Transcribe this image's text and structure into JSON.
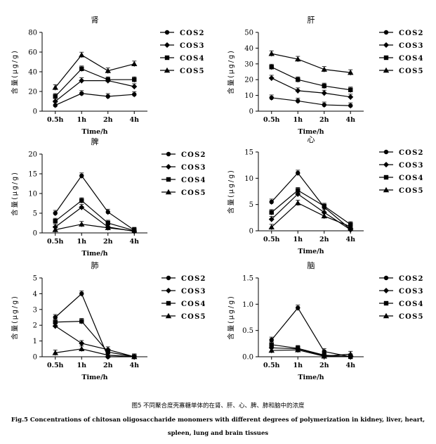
{
  "x_categories": [
    "0.5h",
    "1h",
    "2h",
    "4h"
  ],
  "caption": {
    "cn": "图5 不同聚合度壳寡糖单体的在肾、肝、心、脾、肺和脑中的浓度",
    "en_line1": "Fig.5 Concentrations of chitosan oligosaccharide monomers with different degrees of polymerization in kidney, liver, heart,",
    "en_line2": "spleen, lung and brain tissues"
  },
  "chart_data": [
    {
      "type": "line",
      "title": "肾",
      "xlabel": "Time/h",
      "ylabel": "含量(μg/g)",
      "categories": [
        "0.5h",
        "1h",
        "2h",
        "4h"
      ],
      "ylim": [
        0,
        80
      ],
      "yticks": [
        0,
        20,
        40,
        60,
        80
      ],
      "legend": "right",
      "series": [
        {
          "name": "COS2",
          "marker": "circle",
          "values": [
            6,
            18,
            15,
            17
          ]
        },
        {
          "name": "COS3",
          "marker": "diamond",
          "values": [
            10,
            31,
            31,
            25
          ]
        },
        {
          "name": "COS4",
          "marker": "square",
          "values": [
            15,
            43,
            32,
            32
          ]
        },
        {
          "name": "COS5",
          "marker": "triangle",
          "values": [
            24,
            57,
            41,
            48
          ]
        }
      ]
    },
    {
      "type": "line",
      "title": "肝",
      "xlabel": "Time/h",
      "ylabel": "含量(μg/g)",
      "categories": [
        "0.5h",
        "1h",
        "2h",
        "4h"
      ],
      "ylim": [
        0,
        50
      ],
      "yticks": [
        0,
        10,
        20,
        30,
        40,
        50
      ],
      "legend": "right",
      "series": [
        {
          "name": "COS2",
          "marker": "circle",
          "values": [
            8.5,
            6.5,
            4,
            3.5
          ]
        },
        {
          "name": "COS3",
          "marker": "diamond",
          "values": [
            21,
            13,
            11.5,
            9
          ]
        },
        {
          "name": "COS4",
          "marker": "square",
          "values": [
            28,
            20,
            16,
            13.5
          ]
        },
        {
          "name": "COS5",
          "marker": "triangle",
          "values": [
            36.5,
            33,
            26.5,
            24.5
          ]
        }
      ]
    },
    {
      "type": "line",
      "title": "脾",
      "xlabel": "Time/h",
      "ylabel": "含量(μg/g)",
      "categories": [
        "0.5h",
        "1h",
        "2h",
        "4h"
      ],
      "ylim": [
        0,
        20
      ],
      "yticks": [
        0,
        5,
        10,
        15,
        20
      ],
      "legend": "right",
      "series": [
        {
          "name": "COS2",
          "marker": "circle",
          "values": [
            5,
            14.5,
            5.3,
            0.7
          ]
        },
        {
          "name": "COS3",
          "marker": "diamond",
          "values": [
            1.5,
            6.5,
            1.5,
            0.4
          ]
        },
        {
          "name": "COS4",
          "marker": "square",
          "values": [
            3,
            8.2,
            2.5,
            0.6
          ]
        },
        {
          "name": "COS5",
          "marker": "triangle",
          "values": [
            0.8,
            2.2,
            1.3,
            0.5
          ]
        }
      ]
    },
    {
      "type": "line",
      "title": "心",
      "xlabel": "Time/h",
      "ylabel": "含量(μg/g)",
      "categories": [
        "0.5h",
        "1h",
        "2h",
        "4h"
      ],
      "ylim": [
        0,
        15
      ],
      "yticks": [
        0,
        5,
        10,
        15
      ],
      "legend": "right",
      "series": [
        {
          "name": "COS2",
          "marker": "circle",
          "values": [
            5.5,
            11,
            4.5,
            0.3
          ]
        },
        {
          "name": "COS3",
          "marker": "diamond",
          "values": [
            2.2,
            7,
            3.5,
            0.2
          ]
        },
        {
          "name": "COS4",
          "marker": "square",
          "values": [
            3.5,
            7.7,
            4.7,
            1.2
          ]
        },
        {
          "name": "COS5",
          "marker": "triangle",
          "values": [
            0.7,
            5.3,
            2.8,
            0.8
          ]
        }
      ]
    },
    {
      "type": "line",
      "title": "肺",
      "xlabel": "Time/h",
      "ylabel": "含量(μg/g)",
      "categories": [
        "0.5h",
        "1h",
        "2h",
        "4h"
      ],
      "ylim": [
        0,
        5
      ],
      "yticks": [
        0,
        1,
        2,
        3,
        4,
        5
      ],
      "legend": "right",
      "series": [
        {
          "name": "COS2",
          "marker": "circle",
          "values": [
            2.5,
            4,
            0,
            0
          ]
        },
        {
          "name": "COS3",
          "marker": "diamond",
          "values": [
            1.95,
            0.85,
            0.45,
            0
          ]
        },
        {
          "name": "COS4",
          "marker": "square",
          "values": [
            2.2,
            2.25,
            0.3,
            0
          ]
        },
        {
          "name": "COS5",
          "marker": "triangle",
          "values": [
            0.25,
            0.5,
            0.1,
            0
          ]
        }
      ]
    },
    {
      "type": "line",
      "title": "脑",
      "xlabel": "Time/h",
      "ylabel": "含量(μg/g)",
      "categories": [
        "0.5h",
        "1h",
        "2h",
        "4h"
      ],
      "ylim": [
        0,
        1.5
      ],
      "yticks": [
        0,
        0.5,
        1,
        1.5
      ],
      "ytick_labels": [
        "0.0",
        "0.5",
        "1.0",
        "1.5"
      ],
      "legend": "right",
      "series": [
        {
          "name": "COS2",
          "marker": "circle",
          "values": [
            0.32,
            0.93,
            0.1,
            0
          ]
        },
        {
          "name": "COS3",
          "marker": "diamond",
          "values": [
            0.17,
            0.15,
            0.02,
            0
          ]
        },
        {
          "name": "COS4",
          "marker": "square",
          "values": [
            0.23,
            0.16,
            0.03,
            0
          ]
        },
        {
          "name": "COS5",
          "marker": "triangle",
          "values": [
            0.12,
            0.13,
            0.01,
            0.05
          ]
        }
      ]
    }
  ]
}
